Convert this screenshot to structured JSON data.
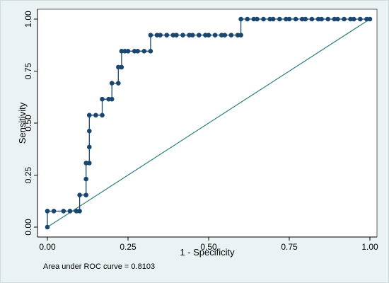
{
  "chart_data": {
    "type": "line",
    "xlabel": "1 - Specificity",
    "ylabel": "Sensitivity",
    "xlim": [
      0,
      1
    ],
    "ylim": [
      0,
      1
    ],
    "x_ticks": [
      "0.00",
      "0.25",
      "0.50",
      "0.75",
      "1.00"
    ],
    "y_ticks": [
      "0.00",
      "0.25",
      "0.50",
      "0.75",
      "1.00"
    ],
    "grid": false,
    "legend": "none",
    "annotation": "Area under ROC curve = 0.8103",
    "colors": {
      "curve": "#1a476f",
      "reference": "#2a7f7a",
      "plot_bg": "#ffffff",
      "outer_bg": "#eaf2f3"
    },
    "series": [
      {
        "type": "step-markers",
        "x": [
          0.0,
          0.0,
          0.02,
          0.05,
          0.07,
          0.09,
          0.1,
          0.1,
          0.12,
          0.12,
          0.12,
          0.13,
          0.13,
          0.13,
          0.13,
          0.13,
          0.15,
          0.17,
          0.17,
          0.19,
          0.2,
          0.2,
          0.22,
          0.22,
          0.23,
          0.23,
          0.24,
          0.25,
          0.27,
          0.28,
          0.3,
          0.32,
          0.32,
          0.34,
          0.35,
          0.37,
          0.39,
          0.4,
          0.42,
          0.44,
          0.45,
          0.47,
          0.49,
          0.5,
          0.52,
          0.54,
          0.55,
          0.57,
          0.59,
          0.6,
          0.6,
          0.62,
          0.64,
          0.65,
          0.67,
          0.69,
          0.7,
          0.72,
          0.74,
          0.75,
          0.77,
          0.79,
          0.8,
          0.82,
          0.84,
          0.85,
          0.87,
          0.89,
          0.9,
          0.92,
          0.94,
          0.95,
          0.97,
          0.99,
          1.0
        ],
        "y": [
          0.0,
          0.077,
          0.077,
          0.077,
          0.077,
          0.077,
          0.077,
          0.154,
          0.154,
          0.231,
          0.308,
          0.308,
          0.385,
          0.462,
          0.538,
          0.538,
          0.538,
          0.538,
          0.615,
          0.615,
          0.615,
          0.692,
          0.692,
          0.769,
          0.769,
          0.846,
          0.846,
          0.846,
          0.846,
          0.846,
          0.846,
          0.846,
          0.923,
          0.923,
          0.923,
          0.923,
          0.923,
          0.923,
          0.923,
          0.923,
          0.923,
          0.923,
          0.923,
          0.923,
          0.923,
          0.923,
          0.923,
          0.923,
          0.923,
          0.923,
          1.0,
          1.0,
          1.0,
          1.0,
          1.0,
          1.0,
          1.0,
          1.0,
          1.0,
          1.0,
          1.0,
          1.0,
          1.0,
          1.0,
          1.0,
          1.0,
          1.0,
          1.0,
          1.0,
          1.0,
          1.0,
          1.0,
          1.0,
          1.0,
          1.0
        ]
      },
      {
        "type": "line",
        "x": [
          0,
          1
        ],
        "y": [
          0,
          1
        ]
      }
    ]
  }
}
